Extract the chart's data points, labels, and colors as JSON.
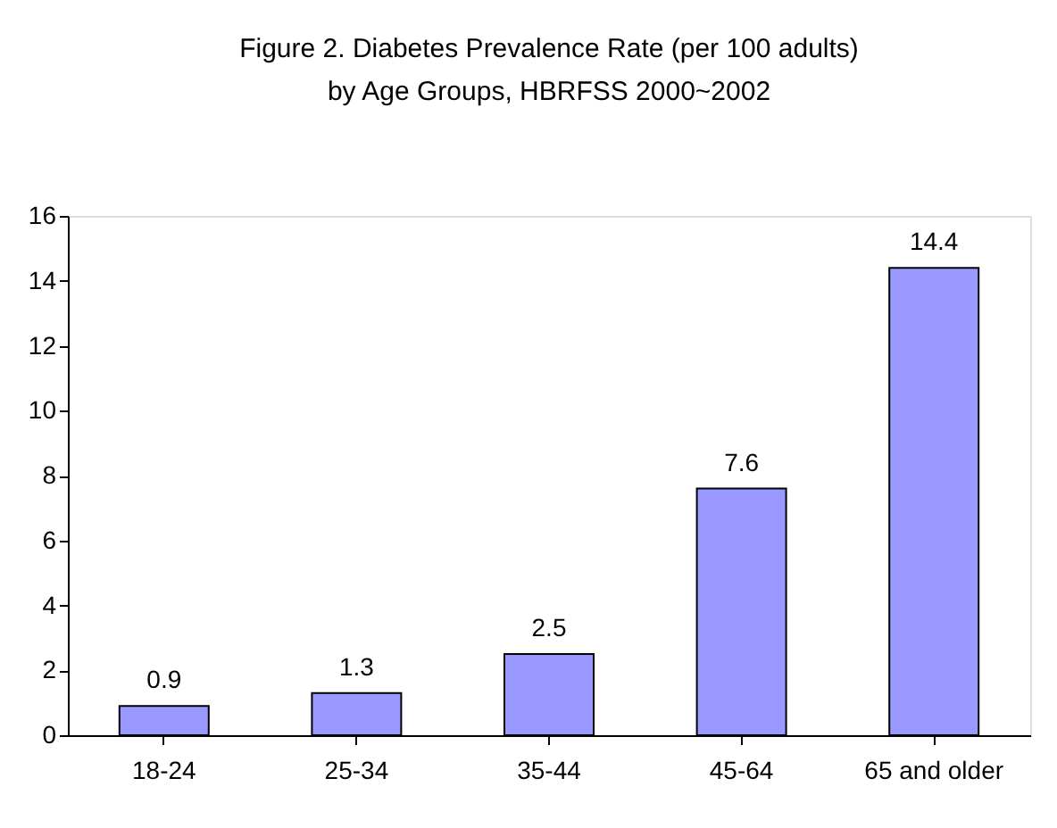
{
  "chart_data": {
    "type": "bar",
    "title": [
      "Figure 2.  Diabetes Prevalence Rate (per 100 adults)",
      "by Age Groups, HBRFSS 2000~2002"
    ],
    "categories": [
      "18-24",
      "25-34",
      "35-44",
      "45-64",
      "65 and older"
    ],
    "values": [
      0.9,
      1.3,
      2.5,
      7.6,
      14.4
    ],
    "color": "#9999ff",
    "ylim": [
      0,
      16
    ],
    "yticks": [
      0,
      2,
      4,
      6,
      8,
      10,
      12,
      14,
      16
    ],
    "grid": false,
    "data_labels": true
  }
}
